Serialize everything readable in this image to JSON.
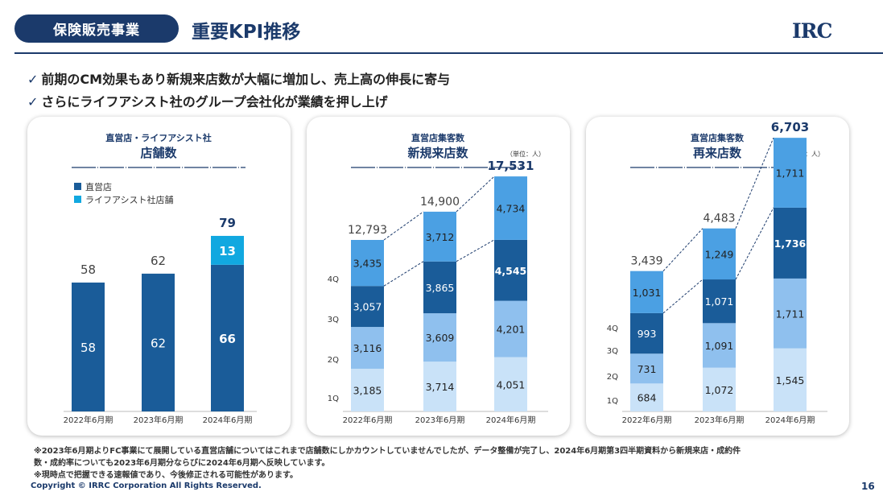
{
  "header": {
    "section_label": "保険販売事業",
    "title": "重要KPI推移",
    "logo_text": "IRC"
  },
  "bullets": [
    "前期のCM効果もあり新規来店数が大幅に増加し、売上高の伸長に寄与",
    "さらにライフアシスト社のグループ会社化が業績を押し上げ"
  ],
  "bullet_mark": "✓",
  "footnotes": [
    "※2023年6月期よりFC事業にて展開している直営店舗についてはこれまで店舗数にしかカウントしていませんでしたが、データ整備が完了し、2024年6月期第3四半期資料から新規来店・成約件",
    "数・成約率についても2023年6月期分ならびに2024年6月期へ反映しています。",
    "※現時点で把握できる速報値であり、今後修正される可能性があります。"
  ],
  "copyright": "Copyright © IRRC Corporation All Rights Reserved.",
  "page_number": "16",
  "colors": {
    "navy": "#1b3a6b",
    "dark_bar": "#1a5c99",
    "cyan": "#11a8e0",
    "q4": "#4ba0e3",
    "q3": "#1a5c99",
    "q2": "#8fc0ee",
    "q1": "#c9e2f8"
  },
  "chart_data": [
    {
      "type": "bar",
      "stacked": true,
      "subtitle": "直営店・ライフアシスト社",
      "title": "店舗数",
      "unit": "",
      "categories": [
        "2022年6月期",
        "2023年6月期",
        "2024年6月期"
      ],
      "legend": [
        "直営店",
        "ライフアシスト社店舗"
      ],
      "series": [
        {
          "name": "直営店",
          "values": [
            58,
            62,
            66
          ],
          "labels": [
            "58",
            "62",
            "66"
          ]
        },
        {
          "name": "ライフアシスト社店舗",
          "values": [
            0,
            0,
            13
          ],
          "labels": [
            "",
            "",
            "13"
          ]
        }
      ],
      "totals": [
        58,
        62,
        79
      ],
      "total_labels": [
        "58",
        "62",
        "79"
      ],
      "ylim": [
        0,
        110
      ]
    },
    {
      "type": "bar",
      "stacked": true,
      "subtitle": "直営店集客数",
      "title": "新規来店数",
      "unit": "（単位：人）",
      "categories": [
        "2022年6月期",
        "2023年6月期",
        "2024年6月期"
      ],
      "series": [
        {
          "name": "1Q",
          "values": [
            3185,
            3714,
            4051
          ],
          "labels": [
            "3,185",
            "3,714",
            "4,051"
          ]
        },
        {
          "name": "2Q",
          "values": [
            3116,
            3609,
            4201
          ],
          "labels": [
            "3,116",
            "3,609",
            "4,201"
          ]
        },
        {
          "name": "3Q",
          "values": [
            3057,
            3865,
            4545
          ],
          "labels": [
            "3,057",
            "3,865",
            "4,545"
          ]
        },
        {
          "name": "4Q",
          "values": [
            3435,
            3712,
            4734
          ],
          "labels": [
            "3,435",
            "3,712",
            "4,734"
          ]
        }
      ],
      "totals": [
        12793,
        14900,
        17531
      ],
      "total_labels": [
        "12,793",
        "14,900",
        "17,531"
      ],
      "ylim": [
        0,
        21000
      ]
    },
    {
      "type": "bar",
      "stacked": true,
      "subtitle": "直営店集客数",
      "title": "再来店数",
      "unit": "（単位：人）",
      "categories": [
        "2022年6月期",
        "2023年6月期",
        "2024年6月期"
      ],
      "series": [
        {
          "name": "1Q",
          "values": [
            684,
            1072,
            1545
          ],
          "labels": [
            "684",
            "1,072",
            "1,545"
          ]
        },
        {
          "name": "2Q",
          "values": [
            731,
            1091,
            1711
          ],
          "labels": [
            "731",
            "1,091",
            "1,711"
          ]
        },
        {
          "name": "3Q",
          "values": [
            993,
            1071,
            1736
          ],
          "labels": [
            "993",
            "1,071",
            "1,736"
          ]
        },
        {
          "name": "4Q",
          "values": [
            1031,
            1249,
            1711
          ],
          "labels": [
            "1,031",
            "1,249",
            "1,711"
          ]
        }
      ],
      "totals": [
        3439,
        4483,
        6703
      ],
      "total_labels": [
        "3,439",
        "4,483",
        "6,703"
      ],
      "ylim": [
        0,
        8100
      ]
    }
  ]
}
